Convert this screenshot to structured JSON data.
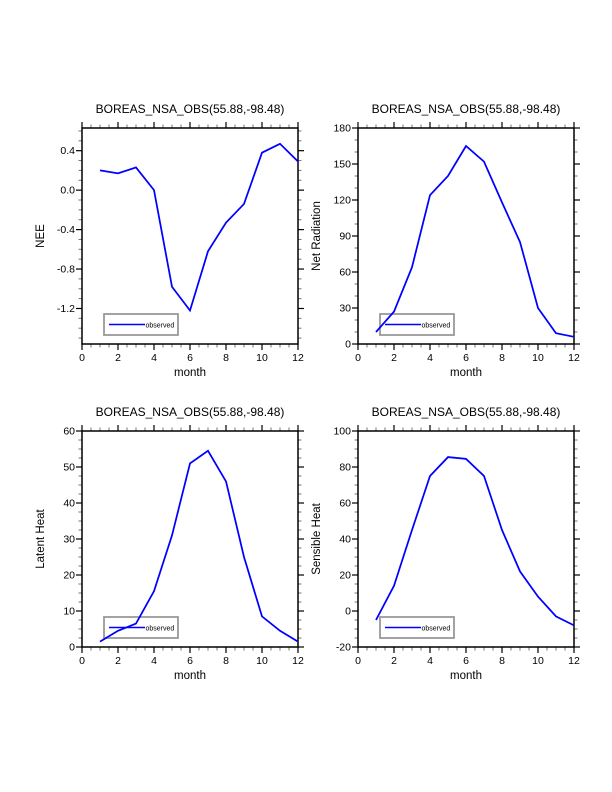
{
  "page": {
    "background": "#ffffff",
    "description": "2x2 grid of observed monthly climate line plots"
  },
  "colors": {
    "line": "#0000ff",
    "axis": "#000000",
    "minor_tick": "#777777",
    "legend_border": "#999999"
  },
  "chart_data": [
    {
      "type": "line",
      "title": "BOREAS_NSA_OBS(55.88,-98.48)",
      "xlabel": "month",
      "ylabel": "NEE",
      "x": [
        1,
        2,
        3,
        4,
        5,
        6,
        7,
        8,
        9,
        10,
        11,
        12
      ],
      "series": [
        {
          "name": "observed",
          "color": "#0000ff",
          "values": [
            0.2,
            0.17,
            0.23,
            0.0,
            -0.98,
            -1.22,
            -0.62,
            -0.33,
            -0.14,
            0.38,
            0.47,
            0.29
          ]
        }
      ],
      "xlim": [
        0,
        12
      ],
      "ylim": [
        -1.56,
        0.63
      ],
      "xticks": [
        0,
        2,
        4,
        6,
        8,
        10,
        12
      ],
      "x_minor_step": 0.5,
      "yticks": [
        0.4,
        0.0,
        -0.4,
        -0.8,
        -1.2
      ],
      "ytick_labels": [
        "0.4",
        "0.0",
        "-0.4",
        "-0.8",
        "-1.2"
      ],
      "y_minor_step": 0.1,
      "grid": false,
      "legend": {
        "label": "observed",
        "position": "lower-left"
      }
    },
    {
      "type": "line",
      "title": "BOREAS_NSA_OBS(55.88,-98.48)",
      "xlabel": "month",
      "ylabel": "Net Radiation",
      "x": [
        1,
        2,
        3,
        4,
        5,
        6,
        7,
        8,
        9,
        10,
        11,
        12
      ],
      "series": [
        {
          "name": "observed",
          "color": "#0000ff",
          "values": [
            10,
            27,
            64,
            124,
            140,
            165,
            152,
            118,
            85,
            30,
            9,
            6
          ]
        }
      ],
      "xlim": [
        0,
        12
      ],
      "ylim": [
        0,
        180
      ],
      "xticks": [
        0,
        2,
        4,
        6,
        8,
        10,
        12
      ],
      "x_minor_step": 0.5,
      "yticks": [
        0,
        30,
        60,
        90,
        120,
        150,
        180
      ],
      "ytick_labels": [
        "0",
        "30",
        "60",
        "90",
        "120",
        "150",
        "180"
      ],
      "y_minor_step": 10,
      "grid": false,
      "legend": {
        "label": "observed",
        "position": "lower-left"
      }
    },
    {
      "type": "line",
      "title": "BOREAS_NSA_OBS(55.88,-98.48)",
      "xlabel": "month",
      "ylabel": "Latent Heat",
      "x": [
        1,
        2,
        3,
        4,
        5,
        6,
        7,
        8,
        9,
        10,
        11,
        12
      ],
      "series": [
        {
          "name": "observed",
          "color": "#0000ff",
          "values": [
            1.5,
            4.5,
            6.5,
            15.5,
            31,
            51,
            54.5,
            46,
            25,
            8.5,
            4.5,
            1.5
          ]
        }
      ],
      "xlim": [
        0,
        12
      ],
      "ylim": [
        0,
        60
      ],
      "xticks": [
        0,
        2,
        4,
        6,
        8,
        10,
        12
      ],
      "x_minor_step": 0.5,
      "yticks": [
        0,
        10,
        20,
        30,
        40,
        50,
        60
      ],
      "ytick_labels": [
        "0",
        "10",
        "20",
        "30",
        "40",
        "50",
        "60"
      ],
      "y_minor_step": 2.5,
      "grid": false,
      "legend": {
        "label": "observed",
        "position": "lower-left"
      }
    },
    {
      "type": "line",
      "title": "BOREAS_NSA_OBS(55.88,-98.48)",
      "xlabel": "month",
      "ylabel": "Sensible Heat",
      "x": [
        1,
        2,
        3,
        4,
        5,
        6,
        7,
        8,
        9,
        10,
        11,
        12
      ],
      "series": [
        {
          "name": "observed",
          "color": "#0000ff",
          "values": [
            -5,
            14,
            45,
            75,
            85.5,
            84.5,
            75,
            45,
            22,
            8,
            -3,
            -8
          ]
        }
      ],
      "xlim": [
        0,
        12
      ],
      "ylim": [
        -20,
        100
      ],
      "xticks": [
        0,
        2,
        4,
        6,
        8,
        10,
        12
      ],
      "x_minor_step": 0.5,
      "yticks": [
        -20,
        0,
        20,
        40,
        60,
        80,
        100
      ],
      "ytick_labels": [
        "-20",
        "0",
        "20",
        "40",
        "60",
        "80",
        "100"
      ],
      "y_minor_step": 5,
      "grid": false,
      "legend": {
        "label": "observed",
        "position": "lower-left"
      }
    }
  ]
}
